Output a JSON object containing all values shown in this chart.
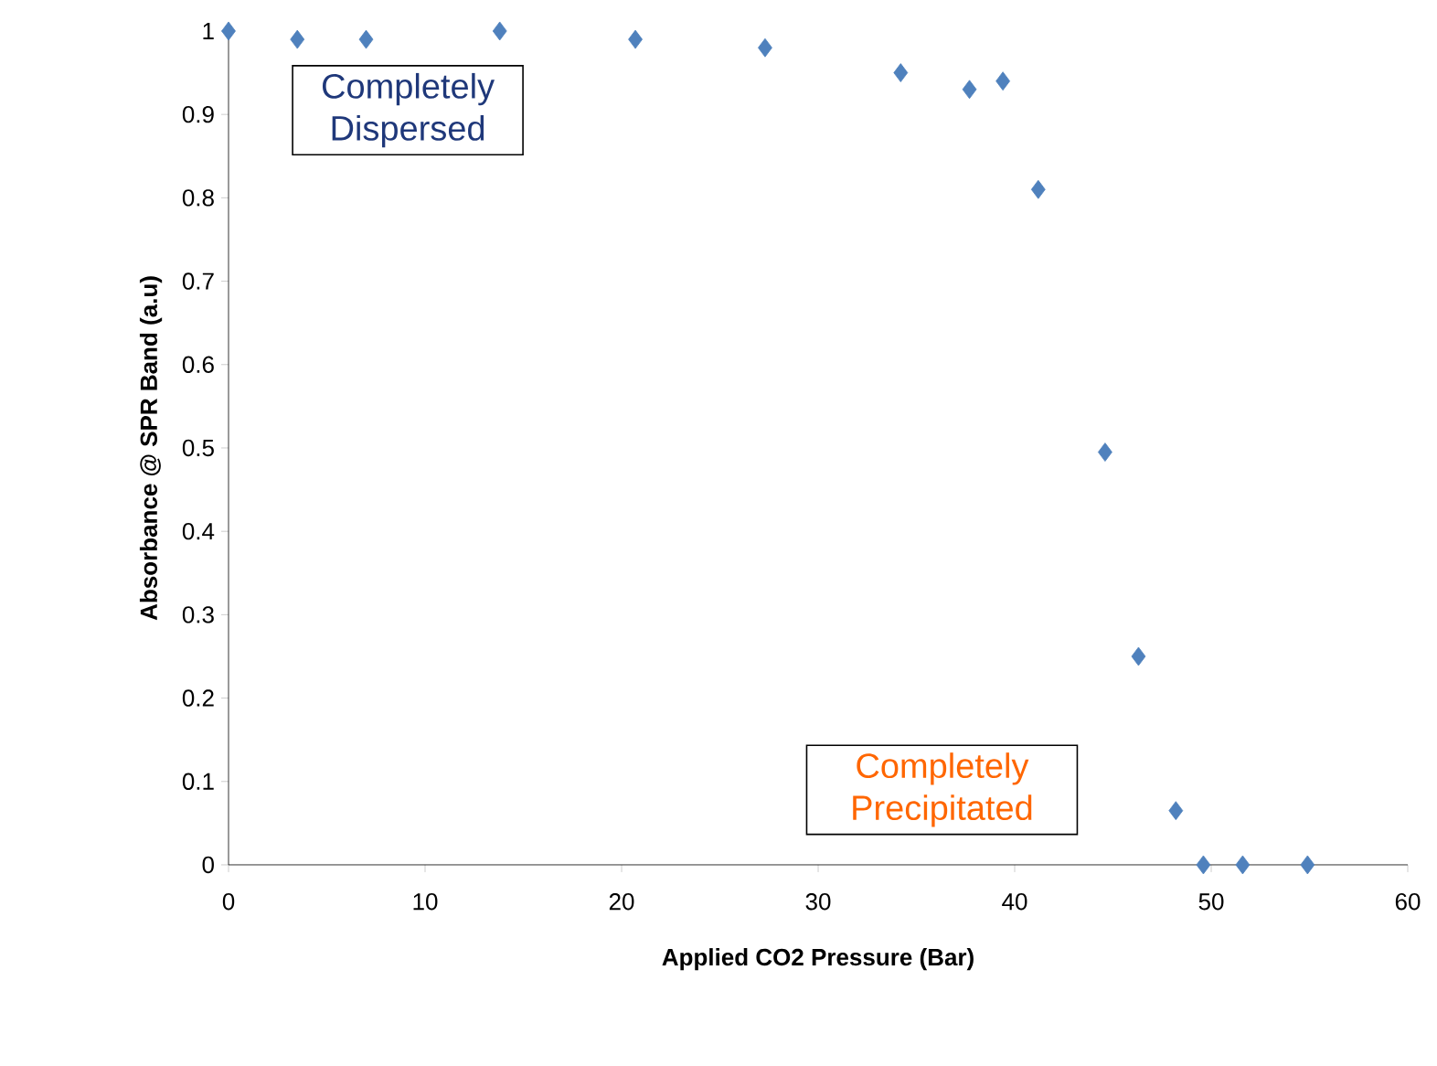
{
  "chart_data": {
    "type": "scatter",
    "xlabel": "Applied CO2 Pressure (Bar)",
    "ylabel": "Absorbance @ SPR Band (a.u)",
    "x": [
      0,
      3.5,
      7,
      13.8,
      20.7,
      27.3,
      34.2,
      37.7,
      39.4,
      41.2,
      44.6,
      46.3,
      48.2,
      49.6,
      51.6,
      54.9
    ],
    "values": [
      1.0,
      0.99,
      0.99,
      1.0,
      0.99,
      0.98,
      0.95,
      0.93,
      0.94,
      0.81,
      0.495,
      0.25,
      0.065,
      0,
      0,
      0
    ],
    "color": "#4f81bd",
    "marker": "diamond",
    "grid": false,
    "xlim": [
      0,
      60
    ],
    "ylim": [
      0,
      1
    ],
    "xticks": [
      0,
      10,
      20,
      30,
      40,
      50,
      60
    ],
    "yticks": [
      0,
      0.1,
      0.2,
      0.3,
      0.4,
      0.5,
      0.6,
      0.7,
      0.8,
      0.9,
      1
    ],
    "annotations": [
      "Completely Dispersed",
      "Completely Precipitated"
    ]
  }
}
